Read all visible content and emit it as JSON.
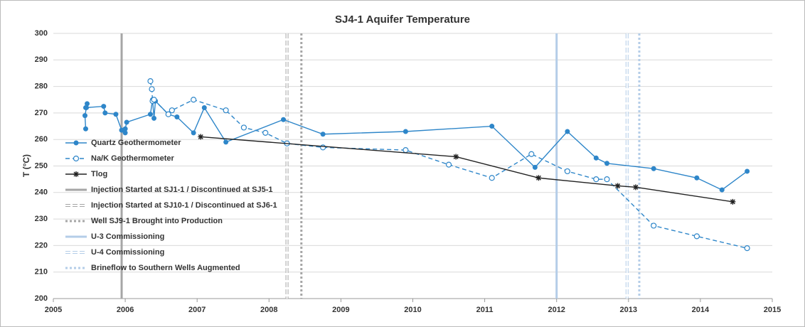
{
  "chart_data": {
    "type": "line",
    "title": "SJ4-1 Aquifer Temperature",
    "y_label": "T (°C)",
    "xlim": [
      2005,
      2015
    ],
    "xticks": [
      2005,
      2006,
      2007,
      2008,
      2009,
      2010,
      2011,
      2012,
      2013,
      2014,
      2015
    ],
    "ylim": [
      200,
      300
    ],
    "yticks": [
      200,
      210,
      220,
      230,
      240,
      250,
      260,
      270,
      280,
      290,
      300
    ],
    "grid": true,
    "legend": "left",
    "series": [
      {
        "name": "Quartz Geothermometer",
        "color": "#2e86c9",
        "style": "solid",
        "marker": "filled-circle",
        "x": [
          2005.45,
          2005.44,
          2005.46,
          2005.47,
          2005.45,
          2005.7,
          2005.72,
          2005.87,
          2005.95,
          2006.0,
          2006.0,
          2006.02,
          2006.35,
          2006.38,
          2006.4,
          2006.42,
          2006.6,
          2006.72,
          2006.95,
          2007.1,
          2007.4,
          2008.2,
          2008.75,
          2009.9,
          2011.1,
          2011.7,
          2012.15,
          2012.55,
          2012.7,
          2013.35,
          2013.95,
          2014.3,
          2014.65
        ],
        "values": [
          264,
          269,
          272,
          273.5,
          272,
          272.5,
          270,
          269.5,
          263.5,
          262.5,
          264,
          266.5,
          269.5,
          275,
          268,
          274.5,
          269.5,
          268.5,
          262.5,
          272,
          259,
          267.5,
          262,
          263,
          265,
          249.5,
          263,
          253,
          251,
          249,
          245.5,
          241,
          248
        ]
      },
      {
        "name": "Na/K Geothermometer",
        "color": "#2e86c9",
        "style": "dashed",
        "marker": "open-circle",
        "x": [
          2006.35,
          2006.37,
          2006.38,
          2006.4,
          2006.6,
          2006.65,
          2006.95,
          2007.4,
          2007.65,
          2007.95,
          2008.25,
          2008.75,
          2009.9,
          2010.5,
          2011.1,
          2011.65,
          2012.15,
          2012.55,
          2012.7,
          2013.35,
          2013.95,
          2014.65
        ],
        "values": [
          282,
          279,
          274.5,
          275,
          269.5,
          271,
          275,
          271,
          264.5,
          262.5,
          258.5,
          257,
          256,
          250.5,
          245.5,
          254.5,
          248,
          245,
          245,
          227.5,
          223.5,
          219
        ]
      },
      {
        "name": "Tlog",
        "color": "#222222",
        "style": "solid",
        "marker": "star",
        "x": [
          2007.05,
          2010.6,
          2011.75,
          2012.85,
          2013.1,
          2014.45
        ],
        "values": [
          261,
          253.5,
          245.5,
          242.5,
          242,
          236.5
        ]
      }
    ],
    "vlines": [
      {
        "name": "Injection Started at SJ1-1 / Discontinued at SJ5-1",
        "color": "#a6a6a6",
        "style": "solid",
        "x": 2005.95
      },
      {
        "name": "Injection Started at SJ10-1 / Discontinued at SJ6-1",
        "color": "#a6a6a6",
        "style": "hollow-dashed",
        "x": 2008.25
      },
      {
        "name": "Well SJ9-1 Brought into Production",
        "color": "#a6a6a6",
        "style": "dotted",
        "x": 2008.45
      },
      {
        "name": "U-3 Commissioning",
        "color": "#b4cde8",
        "style": "solid",
        "x": 2012.0
      },
      {
        "name": "U-4 Commissioning",
        "color": "#b4cde8",
        "style": "hollow-dashed",
        "x": 2012.98
      },
      {
        "name": "Brineflow to Southern Wells Augmented",
        "color": "#b4cde8",
        "style": "dotted",
        "x": 2013.15
      }
    ]
  }
}
